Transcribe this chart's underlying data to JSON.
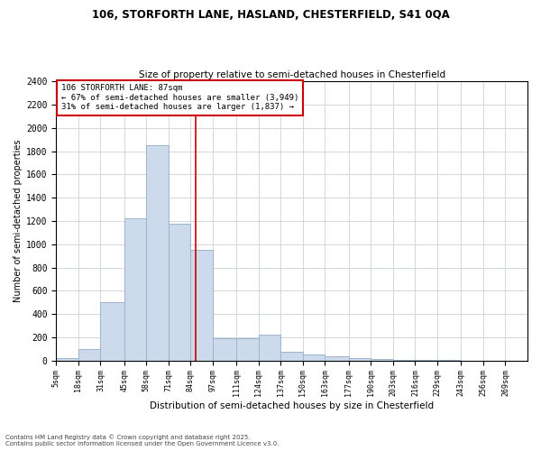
{
  "title1": "106, STORFORTH LANE, HASLAND, CHESTERFIELD, S41 0QA",
  "title2": "Size of property relative to semi-detached houses in Chesterfield",
  "xlabel": "Distribution of semi-detached houses by size in Chesterfield",
  "ylabel": "Number of semi-detached properties",
  "footnote": "Contains HM Land Registry data © Crown copyright and database right 2025.\nContains public sector information licensed under the Open Government Licence v3.0.",
  "bin_edges": [
    5,
    18,
    31,
    45,
    58,
    71,
    84,
    97,
    111,
    124,
    137,
    150,
    163,
    177,
    190,
    203,
    216,
    229,
    243,
    256,
    269,
    282
  ],
  "bin_labels": [
    "5sqm",
    "18sqm",
    "31sqm",
    "45sqm",
    "58sqm",
    "71sqm",
    "84sqm",
    "97sqm",
    "111sqm",
    "124sqm",
    "137sqm",
    "150sqm",
    "163sqm",
    "177sqm",
    "190sqm",
    "203sqm",
    "216sqm",
    "229sqm",
    "243sqm",
    "256sqm",
    "269sqm"
  ],
  "counts": [
    20,
    100,
    500,
    1225,
    1850,
    1175,
    950,
    190,
    190,
    225,
    75,
    50,
    35,
    20,
    10,
    5,
    3,
    2,
    1,
    1,
    0
  ],
  "bar_color": "#ccdaeb",
  "bar_edge_color": "#9ab5cc",
  "property_value": 87,
  "property_label": "106 STORFORTH LANE: 87sqm",
  "annotation_smaller": "← 67% of semi-detached houses are smaller (3,949)",
  "annotation_larger": "31% of semi-detached houses are larger (1,837) →",
  "vline_color": "#cc0000",
  "box_color": "#cc0000",
  "ylim": [
    0,
    2400
  ],
  "yticks": [
    0,
    200,
    400,
    600,
    800,
    1000,
    1200,
    1400,
    1600,
    1800,
    2000,
    2200,
    2400
  ],
  "background_color": "#ffffff",
  "grid_color": "#d0d8e0",
  "figwidth": 6.0,
  "figheight": 5.0,
  "dpi": 100
}
